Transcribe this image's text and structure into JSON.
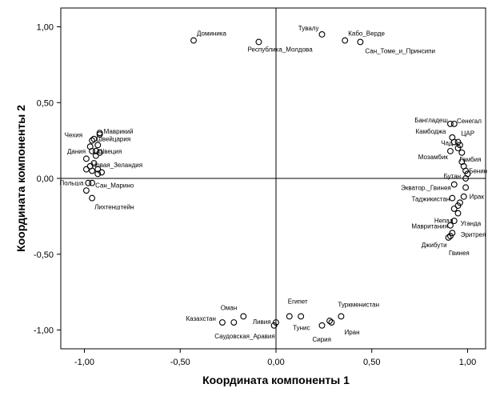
{
  "chart_data": {
    "type": "scatter",
    "title": "",
    "xlabel": "Координата компоненты 1",
    "ylabel": "Координата компоненты 2",
    "xlim": [
      -1.1,
      1.1
    ],
    "ylim": [
      -1.1,
      1.1
    ],
    "xticks": [
      -1.0,
      -0.5,
      0.0,
      0.5,
      1.0
    ],
    "yticks": [
      -1.0,
      -0.5,
      0.0,
      0.5,
      1.0
    ],
    "xtick_labels": [
      "-1,00",
      "-0,50",
      "0,00",
      "0,50",
      "1,00"
    ],
    "ytick_labels": [
      "-1,00",
      "-0,50",
      "0,00",
      "0,50",
      "1,00"
    ],
    "reference_lines": {
      "x": 0,
      "y": 0
    },
    "grid": false,
    "marker": "open-circle",
    "points": [
      {
        "x": -0.43,
        "y": 0.91,
        "label": "Доминика"
      },
      {
        "x": -0.09,
        "y": 0.9,
        "label": "Республика_Молдова"
      },
      {
        "x": 0.24,
        "y": 0.95,
        "label": "Тувалу"
      },
      {
        "x": 0.36,
        "y": 0.91,
        "label": "Кабо_Верде"
      },
      {
        "x": 0.44,
        "y": 0.9,
        "label": "Сан_Томе_и_Принсипи"
      },
      {
        "x": -0.92,
        "y": 0.29,
        "label": "Маврикий"
      },
      {
        "x": -0.92,
        "y": 0.3,
        "label": ""
      },
      {
        "x": -0.96,
        "y": 0.25,
        "label": "Чехия"
      },
      {
        "x": -0.95,
        "y": 0.26,
        "label": "Швейцария"
      },
      {
        "x": -0.93,
        "y": 0.22,
        "label": ""
      },
      {
        "x": -0.97,
        "y": 0.21,
        "label": ""
      },
      {
        "x": -0.94,
        "y": 0.18,
        "label": "Швеция"
      },
      {
        "x": -0.96,
        "y": 0.18,
        "label": "Дания"
      },
      {
        "x": -0.92,
        "y": 0.17,
        "label": ""
      },
      {
        "x": -0.94,
        "y": 0.15,
        "label": ""
      },
      {
        "x": -0.99,
        "y": 0.13,
        "label": ""
      },
      {
        "x": -0.95,
        "y": 0.1,
        "label": "Новая_Зеландия"
      },
      {
        "x": -0.97,
        "y": 0.08,
        "label": ""
      },
      {
        "x": -0.99,
        "y": 0.06,
        "label": ""
      },
      {
        "x": -0.93,
        "y": 0.06,
        "label": ""
      },
      {
        "x": -0.96,
        "y": 0.05,
        "label": ""
      },
      {
        "x": -0.91,
        "y": 0.04,
        "label": ""
      },
      {
        "x": -0.93,
        "y": 0.03,
        "label": ""
      },
      {
        "x": -0.98,
        "y": -0.03,
        "label": "Польша"
      },
      {
        "x": -0.96,
        "y": -0.03,
        "label": "Сан_Марино"
      },
      {
        "x": -0.99,
        "y": -0.08,
        "label": ""
      },
      {
        "x": -0.96,
        "y": -0.13,
        "label": "Лихтенштейн"
      },
      {
        "x": 0.93,
        "y": 0.36,
        "label": "Бангладеш"
      },
      {
        "x": 0.91,
        "y": 0.36,
        "label": "Сенегал"
      },
      {
        "x": 0.92,
        "y": 0.27,
        "label": "Камбоджа"
      },
      {
        "x": 0.95,
        "y": 0.24,
        "label": "ЦАР"
      },
      {
        "x": 0.93,
        "y": 0.24,
        "label": "Чад"
      },
      {
        "x": 0.96,
        "y": 0.22,
        "label": ""
      },
      {
        "x": 0.95,
        "y": 0.2,
        "label": ""
      },
      {
        "x": 0.91,
        "y": 0.18,
        "label": "Мозамбик"
      },
      {
        "x": 0.97,
        "y": 0.17,
        "label": "Гамбия"
      },
      {
        "x": 0.97,
        "y": 0.11,
        "label": ""
      },
      {
        "x": 0.98,
        "y": 0.08,
        "label": ""
      },
      {
        "x": 0.99,
        "y": 0.05,
        "label": "Бенин"
      },
      {
        "x": 1.0,
        "y": 0.03,
        "label": ""
      },
      {
        "x": 0.99,
        "y": 0.0,
        "label": "Бутан"
      },
      {
        "x": 0.93,
        "y": -0.04,
        "label": "Экватор._Гвинея"
      },
      {
        "x": 0.99,
        "y": -0.06,
        "label": ""
      },
      {
        "x": 0.98,
        "y": -0.12,
        "label": "Ирак"
      },
      {
        "x": 0.92,
        "y": -0.13,
        "label": "Таджикистан"
      },
      {
        "x": 0.96,
        "y": -0.16,
        "label": ""
      },
      {
        "x": 0.95,
        "y": -0.18,
        "label": ""
      },
      {
        "x": 0.93,
        "y": -0.2,
        "label": "Уганда"
      },
      {
        "x": 0.95,
        "y": -0.23,
        "label": "Непал"
      },
      {
        "x": 0.93,
        "y": -0.28,
        "label": "Эритрея"
      },
      {
        "x": 0.91,
        "y": -0.31,
        "label": "Мавритания"
      },
      {
        "x": 0.92,
        "y": -0.36,
        "label": ""
      },
      {
        "x": 0.91,
        "y": -0.38,
        "label": "Гвинея"
      },
      {
        "x": 0.9,
        "y": -0.39,
        "label": "Джибути"
      },
      {
        "x": -0.28,
        "y": -0.95,
        "label": "Казахстан"
      },
      {
        "x": -0.17,
        "y": -0.91,
        "label": "Оман"
      },
      {
        "x": -0.22,
        "y": -0.95,
        "label": "Саудовская_Аравия"
      },
      {
        "x": -0.01,
        "y": -0.97,
        "label": "Ливия"
      },
      {
        "x": 0.0,
        "y": -0.95,
        "label": ""
      },
      {
        "x": 0.07,
        "y": -0.91,
        "label": "Египет"
      },
      {
        "x": 0.13,
        "y": -0.91,
        "label": "Тунис"
      },
      {
        "x": 0.24,
        "y": -0.97,
        "label": "Сирия"
      },
      {
        "x": 0.28,
        "y": -0.94,
        "label": ""
      },
      {
        "x": 0.29,
        "y": -0.95,
        "label": "Иран"
      },
      {
        "x": 0.34,
        "y": -0.91,
        "label": "Туркменистан"
      }
    ]
  }
}
